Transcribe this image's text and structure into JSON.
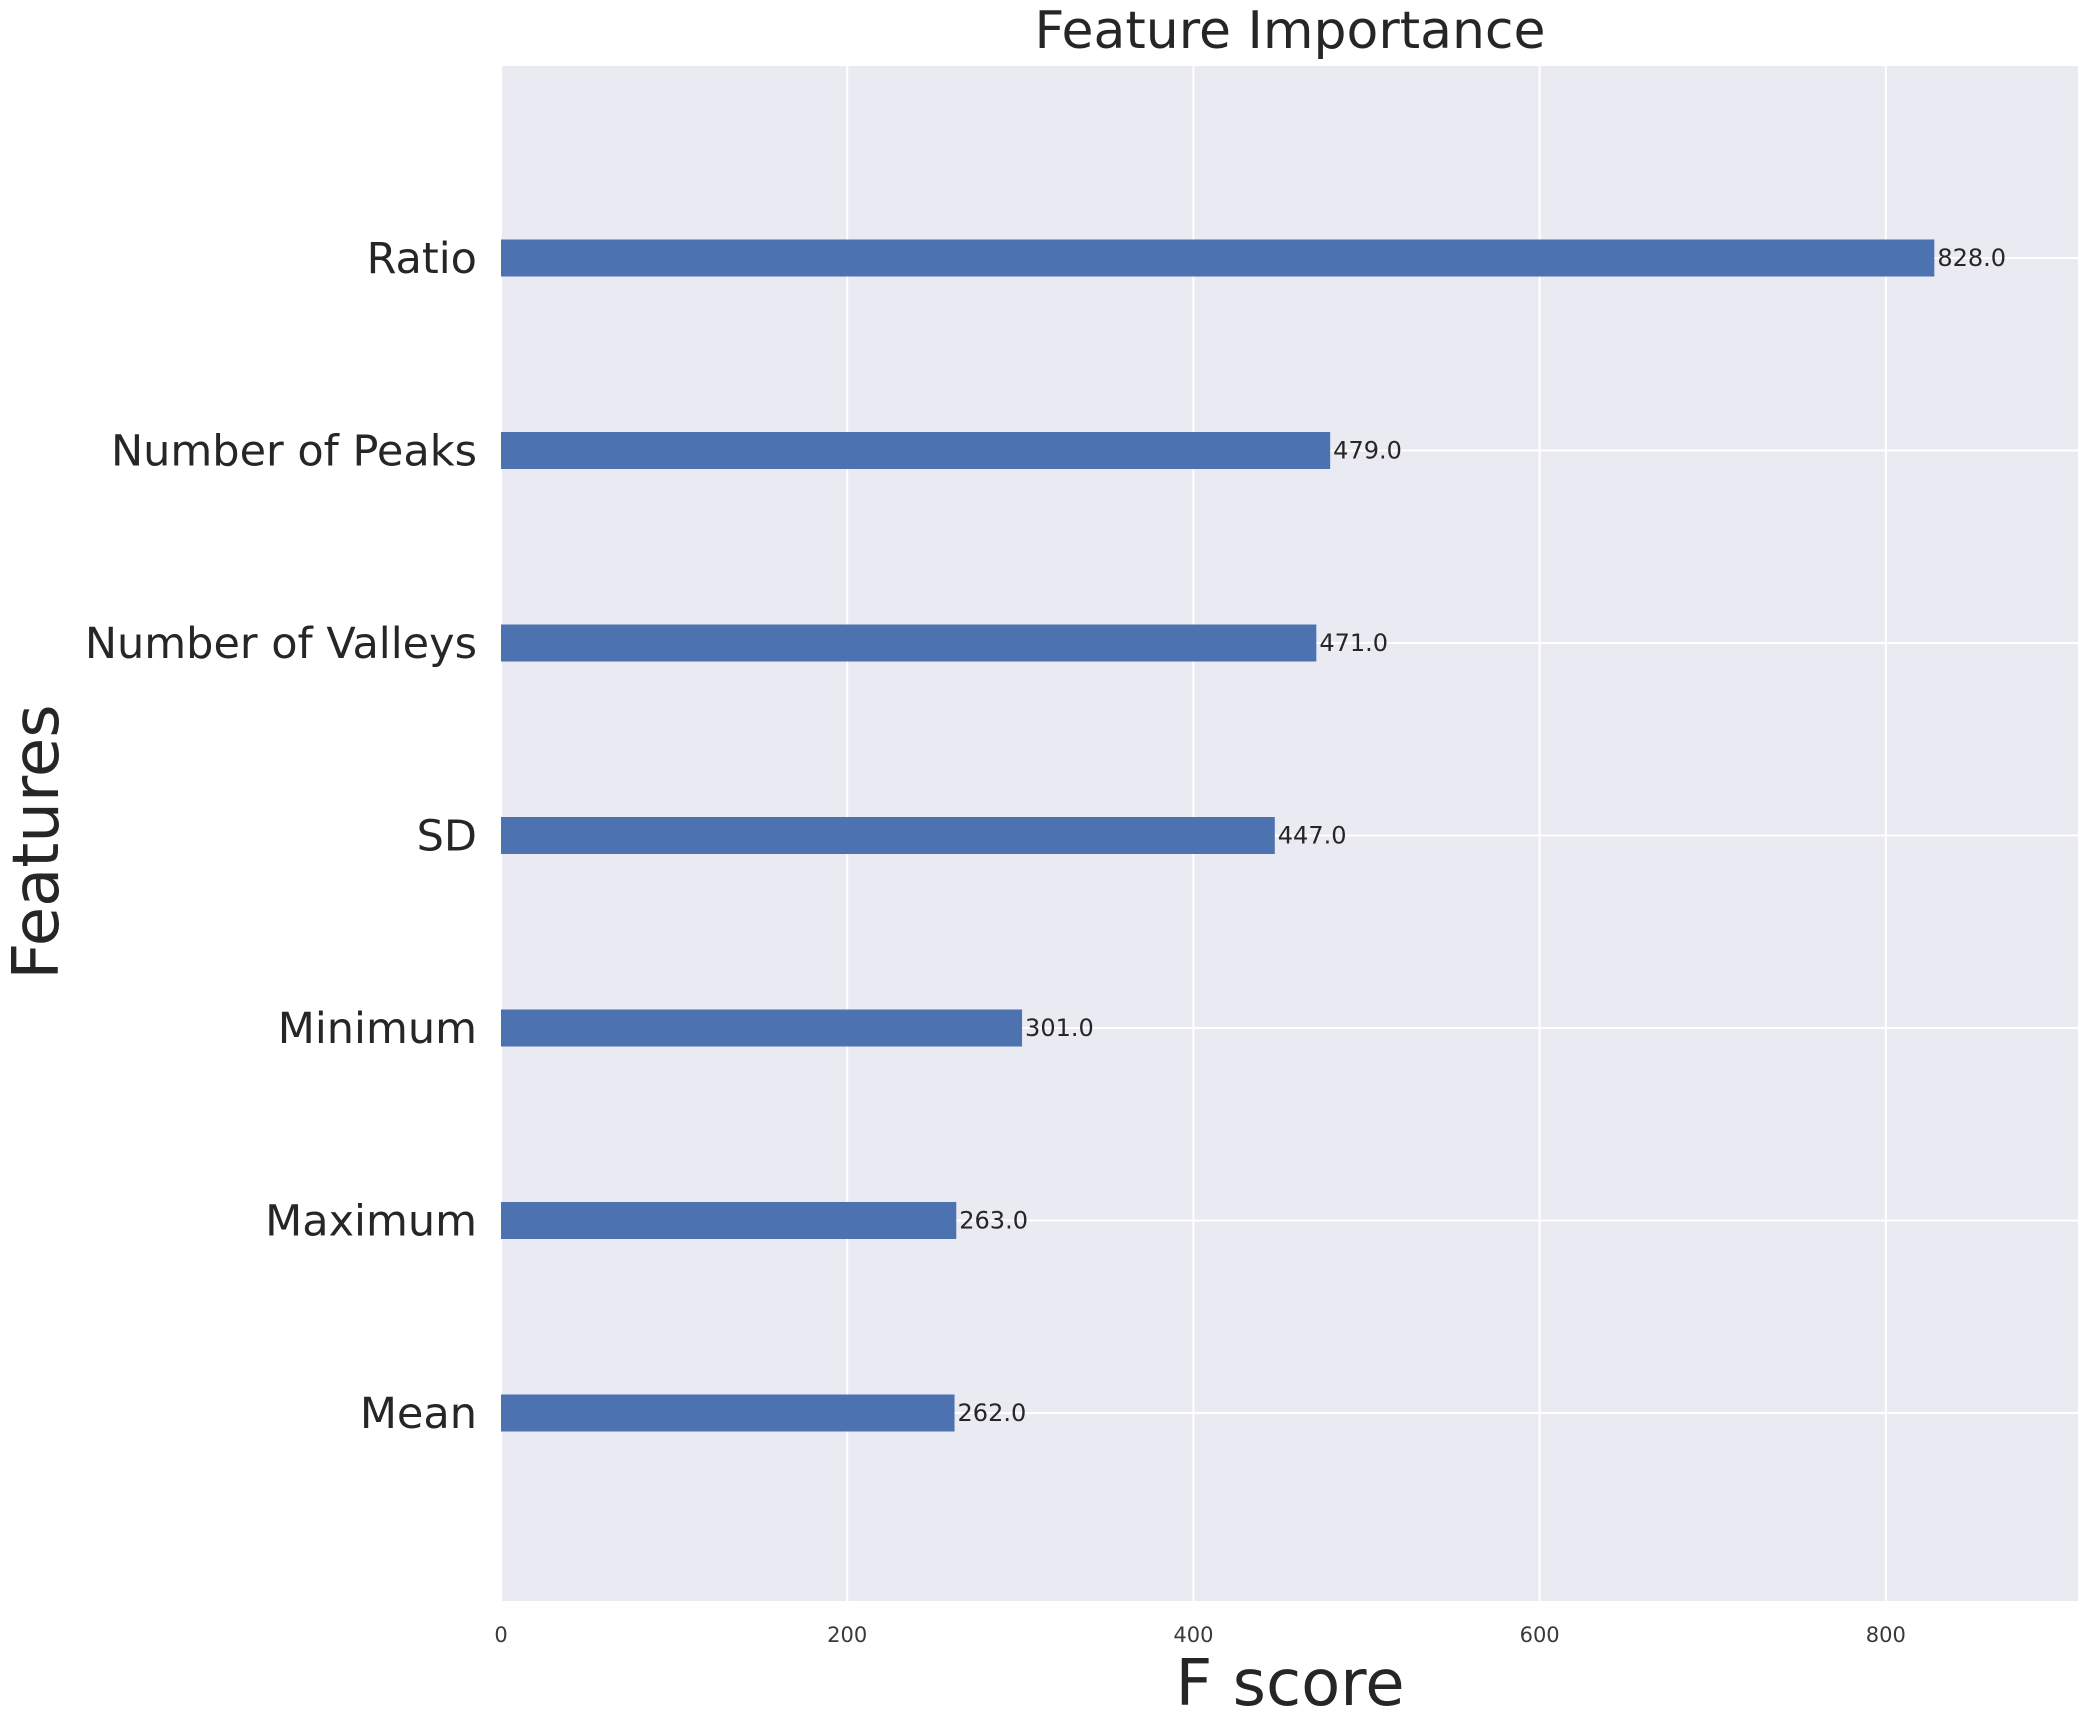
{
  "chart_data": {
    "type": "bar",
    "orientation": "horizontal",
    "title": "Feature Importance",
    "xlabel": "F score",
    "ylabel": "Features",
    "categories": [
      "Ratio",
      "Number of Peaks",
      "Number of Valleys",
      "SD",
      "Minimum",
      "Maximum",
      "Mean"
    ],
    "values": [
      828,
      479,
      471,
      447,
      301,
      263,
      262
    ],
    "value_labels": [
      "828.0",
      "479.0",
      "471.0",
      "447.0",
      "301.0",
      "263.0",
      "262.0"
    ],
    "xlim": [
      0,
      911
    ],
    "xticks": [
      0,
      200,
      400,
      600,
      800
    ],
    "xtick_labels": [
      "0",
      "200",
      "400",
      "600",
      "800"
    ],
    "grid": true,
    "colors": {
      "bar": "#4c72b0",
      "plot_background": "#eaeaf2",
      "grid": "#ffffff",
      "text": "#262626"
    }
  }
}
